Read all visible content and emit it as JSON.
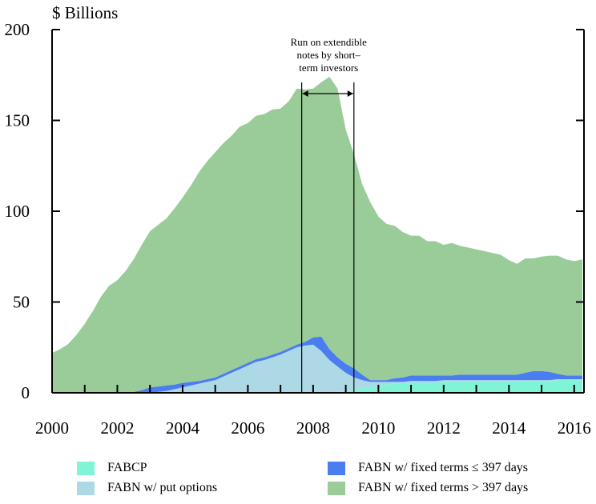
{
  "chart_data": {
    "type": "area",
    "stacked": true,
    "ylabel": "$ Billions",
    "ylim": [
      0,
      200
    ],
    "yticks": [
      0,
      50,
      100,
      150,
      200
    ],
    "xlim": [
      2000,
      2016.3
    ],
    "xticks": [
      2000,
      2002,
      2004,
      2006,
      2008,
      2010,
      2012,
      2014,
      2016
    ],
    "grid": false,
    "legend_position": "bottom",
    "x": [
      2000.0,
      2000.25,
      2000.5,
      2000.75,
      2001.0,
      2001.25,
      2001.5,
      2001.75,
      2002.0,
      2002.25,
      2002.5,
      2002.75,
      2003.0,
      2003.25,
      2003.5,
      2003.75,
      2004.0,
      2004.25,
      2004.5,
      2004.75,
      2005.0,
      2005.25,
      2005.5,
      2005.75,
      2006.0,
      2006.25,
      2006.5,
      2006.75,
      2007.0,
      2007.25,
      2007.5,
      2007.75,
      2008.0,
      2008.25,
      2008.5,
      2008.75,
      2009.0,
      2009.25,
      2009.5,
      2009.75,
      2010.0,
      2010.25,
      2010.5,
      2010.75,
      2011.0,
      2011.25,
      2011.5,
      2011.75,
      2012.0,
      2012.25,
      2012.5,
      2012.75,
      2013.0,
      2013.25,
      2013.5,
      2013.75,
      2014.0,
      2014.25,
      2014.5,
      2014.75,
      2015.0,
      2015.25,
      2015.5,
      2015.75,
      2016.0,
      2016.25
    ],
    "series": [
      {
        "name": "FABCP",
        "color": "#7ff5d6",
        "values": [
          0,
          0,
          0,
          0,
          0,
          0,
          0,
          0,
          0,
          0,
          0,
          0,
          0,
          0,
          0,
          0,
          0,
          0,
          0,
          0,
          0,
          0,
          0,
          0,
          0,
          0,
          0,
          0,
          0,
          0,
          0,
          0,
          0,
          0,
          0,
          0.5,
          1,
          1.5,
          2.5,
          3,
          4,
          4.5,
          5,
          5,
          5.5,
          5.5,
          5.5,
          5.5,
          6,
          6,
          6,
          6,
          6,
          6,
          6,
          6,
          6,
          6,
          6.5,
          6.5,
          6.5,
          6.5,
          7,
          7,
          7,
          7
        ]
      },
      {
        "name": "FABN w/ put options",
        "color": "#add8e6",
        "values": [
          0,
          0,
          0,
          0,
          0,
          0,
          0,
          0,
          0,
          0,
          0,
          0,
          0,
          0.5,
          1,
          2,
          3,
          4,
          5,
          6,
          7,
          9,
          11,
          13,
          15,
          17,
          18,
          19.5,
          21,
          23,
          25,
          26,
          26.5,
          23,
          18,
          14,
          10,
          7,
          4.5,
          3,
          2,
          1.5,
          1,
          1,
          1,
          1,
          1,
          1,
          1,
          1,
          1,
          1,
          1,
          1,
          1,
          1,
          1,
          1,
          0.5,
          0.5,
          0.5,
          0.5,
          0.5,
          0.5,
          0.5,
          0.5
        ]
      },
      {
        "name": "FABN w/ fixed terms ≤ 397 days",
        "color": "#4a7ef0",
        "values": [
          0,
          0,
          0,
          0,
          0,
          0,
          0,
          0,
          0,
          0,
          0.5,
          1.5,
          3,
          3,
          3,
          2.5,
          2.5,
          2,
          1.5,
          1.5,
          1.5,
          1.5,
          1.5,
          1.5,
          1.5,
          1.5,
          1.5,
          1.5,
          1.5,
          1.5,
          1.5,
          2,
          4,
          8,
          6,
          5,
          5,
          5,
          3,
          1,
          1,
          1,
          2,
          2.5,
          3,
          3,
          3,
          3,
          2.5,
          2.5,
          3,
          3,
          3,
          3,
          3,
          3,
          3,
          3,
          4,
          5,
          5,
          4.5,
          3,
          2,
          2,
          2
        ]
      },
      {
        "name": "FABN w/ fixed terms > 397 days",
        "color": "#99cc99",
        "values": [
          22,
          24,
          27,
          32,
          38,
          45,
          53,
          59,
          62,
          67,
          73,
          80,
          86,
          89,
          92,
          97,
          102,
          108,
          115,
          120,
          124,
          127,
          129,
          132,
          132,
          134,
          134,
          135,
          134,
          136,
          141,
          139,
          137,
          140,
          150,
          148,
          129,
          118,
          105,
          98,
          90,
          86,
          84,
          80,
          77,
          77,
          74,
          74,
          72,
          73,
          71,
          70,
          69,
          68,
          67,
          66,
          63,
          61,
          63,
          62,
          63,
          64,
          65,
          64,
          63,
          64
        ]
      }
    ],
    "annotation": {
      "lines": [
        "Run on extendible",
        "notes by short–",
        "term investors"
      ],
      "x_start": 2007.65,
      "x_end": 2009.25
    }
  }
}
